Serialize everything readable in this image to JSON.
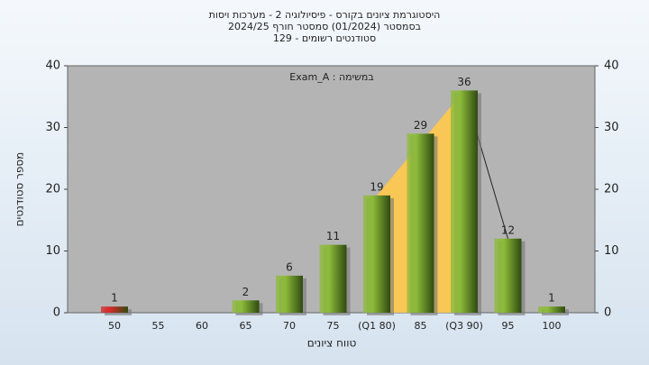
{
  "chart_data": {
    "type": "bar",
    "title": [
      "היסטוגרמת ציונים בקורס - פיסיולוגיה 2 - מערכות ויסות",
      "בסמסטר  (01/2024)  סמסטר חורף 2024/25",
      "סטודנטים רשומים - 129"
    ],
    "annotation": "במשימה : Exam_A",
    "xlabel": "טווח ציונים",
    "ylabel": "מספר סטודנטים",
    "categories": [
      "50",
      "55",
      "60",
      "65",
      "70",
      "75",
      "(Q1 80)",
      "85",
      "(Q3 90)",
      "95",
      "100"
    ],
    "values": [
      1,
      0,
      0,
      2,
      6,
      11,
      19,
      29,
      36,
      12,
      1
    ],
    "colors": [
      "#d42a2a",
      "#8dbb3a",
      "#8dbb3a",
      "#8dbb3a",
      "#8dbb3a",
      "#8dbb3a",
      "#8dbb3a",
      "#8dbb3a",
      "#8dbb3a",
      "#8dbb3a",
      "#8dbb3a"
    ],
    "ylim": [
      0,
      40
    ],
    "yticks": [
      0,
      10,
      20,
      30,
      40
    ],
    "y2lim": [
      0,
      40
    ],
    "y2ticks": [
      0,
      10,
      20,
      30,
      40
    ],
    "grid": false
  }
}
